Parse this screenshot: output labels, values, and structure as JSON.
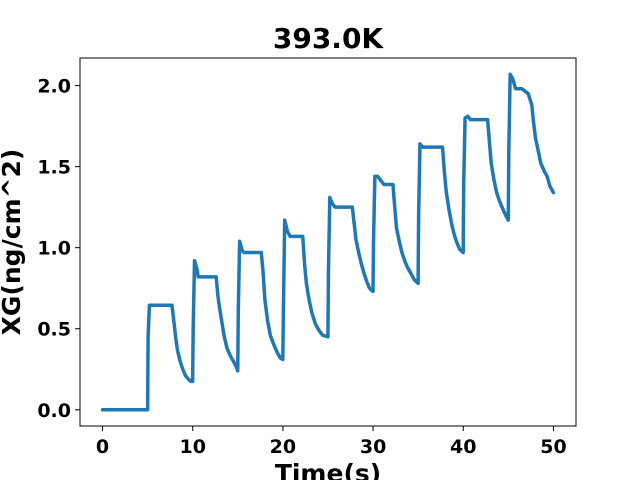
{
  "chart_data": {
    "type": "line",
    "title": "393.0K",
    "xlabel": "Time(s)",
    "ylabel": "XG(ng/cm^2)",
    "xlim": [
      -2.5,
      52.5
    ],
    "ylim": [
      -0.1,
      2.17
    ],
    "x_ticks": [
      0,
      10,
      20,
      30,
      40,
      50
    ],
    "x_tick_labels": [
      "0",
      "10",
      "20",
      "30",
      "40",
      "50"
    ],
    "y_ticks": [
      0.0,
      0.5,
      1.0,
      1.5,
      2.0
    ],
    "y_tick_labels": [
      "0.0",
      "0.5",
      "1.0",
      "1.5",
      "2.0"
    ],
    "grid": false,
    "colors": {
      "series": "#1f77b4"
    },
    "series": [
      {
        "x": [
          0,
          5.0,
          5.05,
          5.2,
          7.7,
          7.9,
          8.1,
          8.3,
          8.6,
          8.9,
          9.2,
          9.5,
          9.8,
          9.99,
          10.05,
          10.2,
          10.5,
          10.6,
          12.6,
          12.8,
          13.0,
          13.2,
          13.5,
          13.8,
          14.2,
          14.5,
          14.8,
          14.99,
          15.05,
          15.2,
          15.5,
          15.7,
          17.6,
          17.8,
          18.0,
          18.3,
          18.6,
          19.0,
          19.4,
          19.7,
          19.99,
          20.05,
          20.2,
          20.5,
          20.8,
          22.2,
          22.4,
          22.6,
          22.9,
          23.2,
          23.6,
          24.0,
          24.4,
          24.99,
          25.05,
          25.2,
          25.5,
          25.8,
          27.7,
          27.9,
          28.1,
          28.4,
          28.7,
          29.0,
          29.3,
          29.6,
          29.99,
          30.05,
          30.2,
          30.5,
          31.2,
          32.2,
          32.4,
          32.6,
          32.9,
          33.2,
          33.5,
          33.8,
          34.2,
          34.6,
          34.99,
          35.05,
          35.2,
          35.5,
          37.7,
          37.9,
          38.1,
          38.4,
          38.7,
          39.0,
          39.3,
          39.6,
          39.99,
          40.05,
          40.2,
          40.5,
          40.8,
          42.7,
          42.9,
          43.1,
          43.4,
          43.7,
          44.0,
          44.3,
          44.7,
          44.99,
          45.05,
          45.2,
          45.5,
          45.8,
          46.5,
          47.2,
          47.6,
          47.8,
          48.0,
          48.3,
          48.6,
          49.0,
          49.3,
          49.6,
          49.99
        ],
        "y": [
          0,
          0,
          0.45,
          0.645,
          0.645,
          0.55,
          0.45,
          0.37,
          0.3,
          0.25,
          0.21,
          0.19,
          0.175,
          0.175,
          0.5,
          0.92,
          0.86,
          0.82,
          0.82,
          0.7,
          0.62,
          0.55,
          0.45,
          0.38,
          0.33,
          0.3,
          0.27,
          0.24,
          0.6,
          1.04,
          0.98,
          0.97,
          0.97,
          0.85,
          0.68,
          0.55,
          0.46,
          0.4,
          0.35,
          0.32,
          0.31,
          0.6,
          1.17,
          1.1,
          1.07,
          1.07,
          0.9,
          0.78,
          0.68,
          0.6,
          0.53,
          0.49,
          0.46,
          0.45,
          0.85,
          1.31,
          1.27,
          1.25,
          1.25,
          1.15,
          1.05,
          0.97,
          0.9,
          0.84,
          0.79,
          0.75,
          0.73,
          1.05,
          1.44,
          1.44,
          1.39,
          1.39,
          1.25,
          1.12,
          1.04,
          0.97,
          0.92,
          0.88,
          0.84,
          0.8,
          0.78,
          1.2,
          1.64,
          1.62,
          1.62,
          1.47,
          1.35,
          1.24,
          1.15,
          1.08,
          1.03,
          0.99,
          0.97,
          1.4,
          1.8,
          1.81,
          1.79,
          1.79,
          1.65,
          1.52,
          1.42,
          1.34,
          1.29,
          1.25,
          1.2,
          1.17,
          1.6,
          2.07,
          2.04,
          1.98,
          1.98,
          1.95,
          1.88,
          1.77,
          1.68,
          1.6,
          1.52,
          1.47,
          1.44,
          1.38,
          1.34
        ]
      }
    ]
  }
}
